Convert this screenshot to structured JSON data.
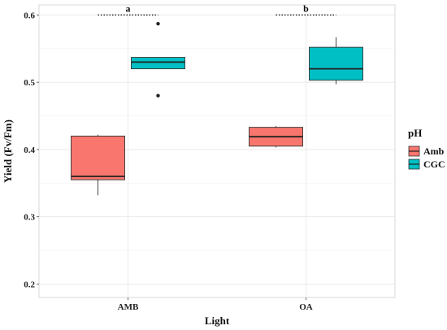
{
  "chart_data": {
    "type": "box",
    "title": "",
    "xlabel": "Light",
    "ylabel": "Yield (Fv/Fm)",
    "ylim": [
      0.18,
      0.615
    ],
    "yticks": [
      "0.2",
      "0.3",
      "0.4",
      "0.5",
      "0.6"
    ],
    "ytick_values": [
      0.2,
      0.3,
      0.4,
      0.5,
      0.6
    ],
    "categories": [
      "AMB",
      "OA"
    ],
    "grid": true,
    "legend": {
      "title": "pH",
      "position": "right"
    },
    "series": [
      {
        "name": "Amb",
        "color": "#F8766D",
        "boxes": [
          {
            "category": "AMB",
            "whisker_low": 0.332,
            "q1": 0.355,
            "median": 0.36,
            "q3": 0.42,
            "whisker_high": 0.422,
            "outliers": []
          },
          {
            "category": "OA",
            "whisker_low": 0.403,
            "q1": 0.405,
            "median": 0.419,
            "q3": 0.433,
            "whisker_high": 0.435,
            "outliers": []
          }
        ]
      },
      {
        "name": "CGC",
        "color": "#00BFC4",
        "boxes": [
          {
            "category": "AMB",
            "whisker_low": 0.52,
            "q1": 0.52,
            "median": 0.53,
            "q3": 0.537,
            "whisker_high": 0.537,
            "outliers": [
              0.587,
              0.48
            ]
          },
          {
            "category": "OA",
            "whisker_low": 0.497,
            "q1": 0.503,
            "median": 0.52,
            "q3": 0.552,
            "whisker_high": 0.567,
            "outliers": []
          }
        ]
      }
    ],
    "annotations": [
      {
        "category": "AMB",
        "label": "a",
        "y": 0.6
      },
      {
        "category": "OA",
        "label": "b",
        "y": 0.6
      }
    ]
  }
}
